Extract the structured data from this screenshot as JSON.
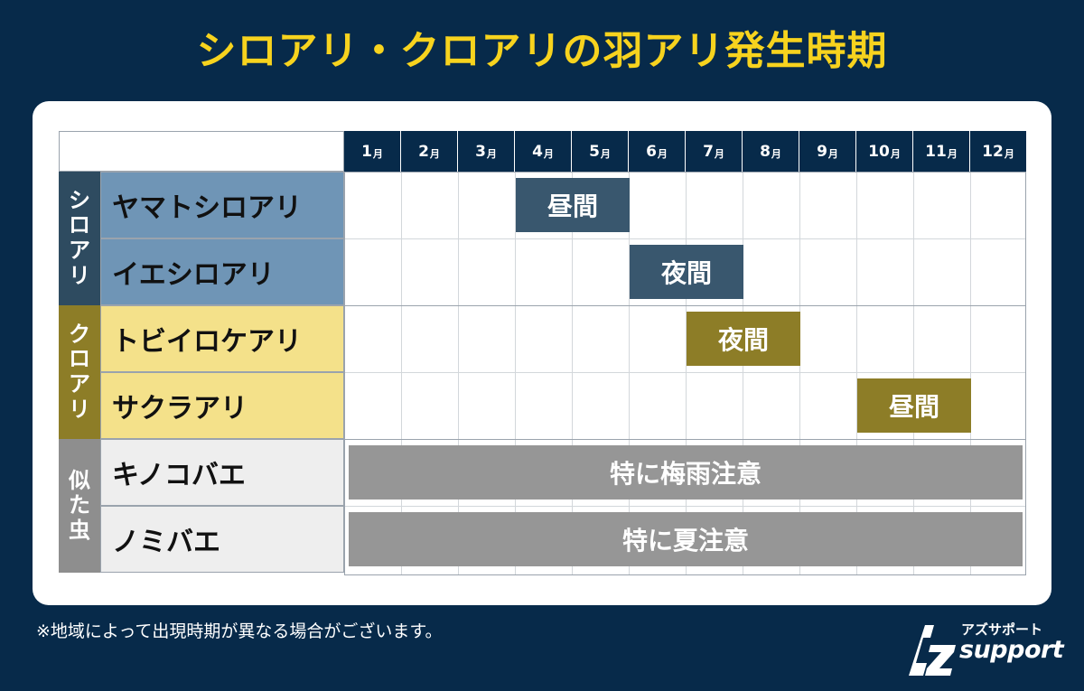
{
  "title": "シロアリ・クロアリの羽アリ発生時期",
  "months": [
    "1",
    "2",
    "3",
    "4",
    "5",
    "6",
    "7",
    "8",
    "9",
    "10",
    "11",
    "12"
  ],
  "month_unit": "月",
  "groups": [
    {
      "label": [
        "シ",
        "ロ",
        "ア",
        "リ"
      ],
      "color": "#2e4b60",
      "text_color": "#ffffff",
      "rows": [
        0,
        1
      ]
    },
    {
      "label": [
        "ク",
        "ロ",
        "ア",
        "リ"
      ],
      "color": "#8d7d27",
      "text_color": "#ffffff",
      "rows": [
        2,
        3
      ]
    },
    {
      "label": [
        "似",
        "た",
        "虫"
      ],
      "color": "#8e8e8e",
      "text_color": "#ffffff",
      "rows": [
        4,
        5
      ]
    }
  ],
  "rows": [
    {
      "name": "ヤマトシロアリ",
      "bg": "#6f95b6"
    },
    {
      "name": "イエシロアリ",
      "bg": "#6f95b6"
    },
    {
      "name": "トビイロケアリ",
      "bg": "#f4e18a"
    },
    {
      "name": "サクラアリ",
      "bg": "#f4e18a"
    },
    {
      "name": "キノコバエ",
      "bg": "#eeeeee"
    },
    {
      "name": "ノミバエ",
      "bg": "#eeeeee"
    }
  ],
  "chart_data": {
    "type": "table",
    "periods": [
      {
        "row": 0,
        "start_month": 4,
        "end_month": 5,
        "label": "昼間",
        "color": "#39576e"
      },
      {
        "row": 1,
        "start_month": 6,
        "end_month": 7,
        "label": "夜間",
        "color": "#39576e"
      },
      {
        "row": 2,
        "start_month": 7,
        "end_month": 8,
        "label": "夜間",
        "color": "#8d7d27"
      },
      {
        "row": 3,
        "start_month": 10,
        "end_month": 11,
        "label": "昼間",
        "color": "#8d7d27"
      },
      {
        "row": 4,
        "start_month": 1,
        "end_month": 12,
        "label": "特に梅雨注意",
        "color": "#969696"
      },
      {
        "row": 5,
        "start_month": 1,
        "end_month": 12,
        "label": "特に夏注意",
        "color": "#969696"
      }
    ]
  },
  "note": "※地域によって出現時期が異なる場合がございます。",
  "logo": {
    "jp": "アズサポート",
    "en": "support"
  },
  "colors": {
    "background": "#072a4a",
    "title": "#f7d31e",
    "header": "#072a4a"
  }
}
